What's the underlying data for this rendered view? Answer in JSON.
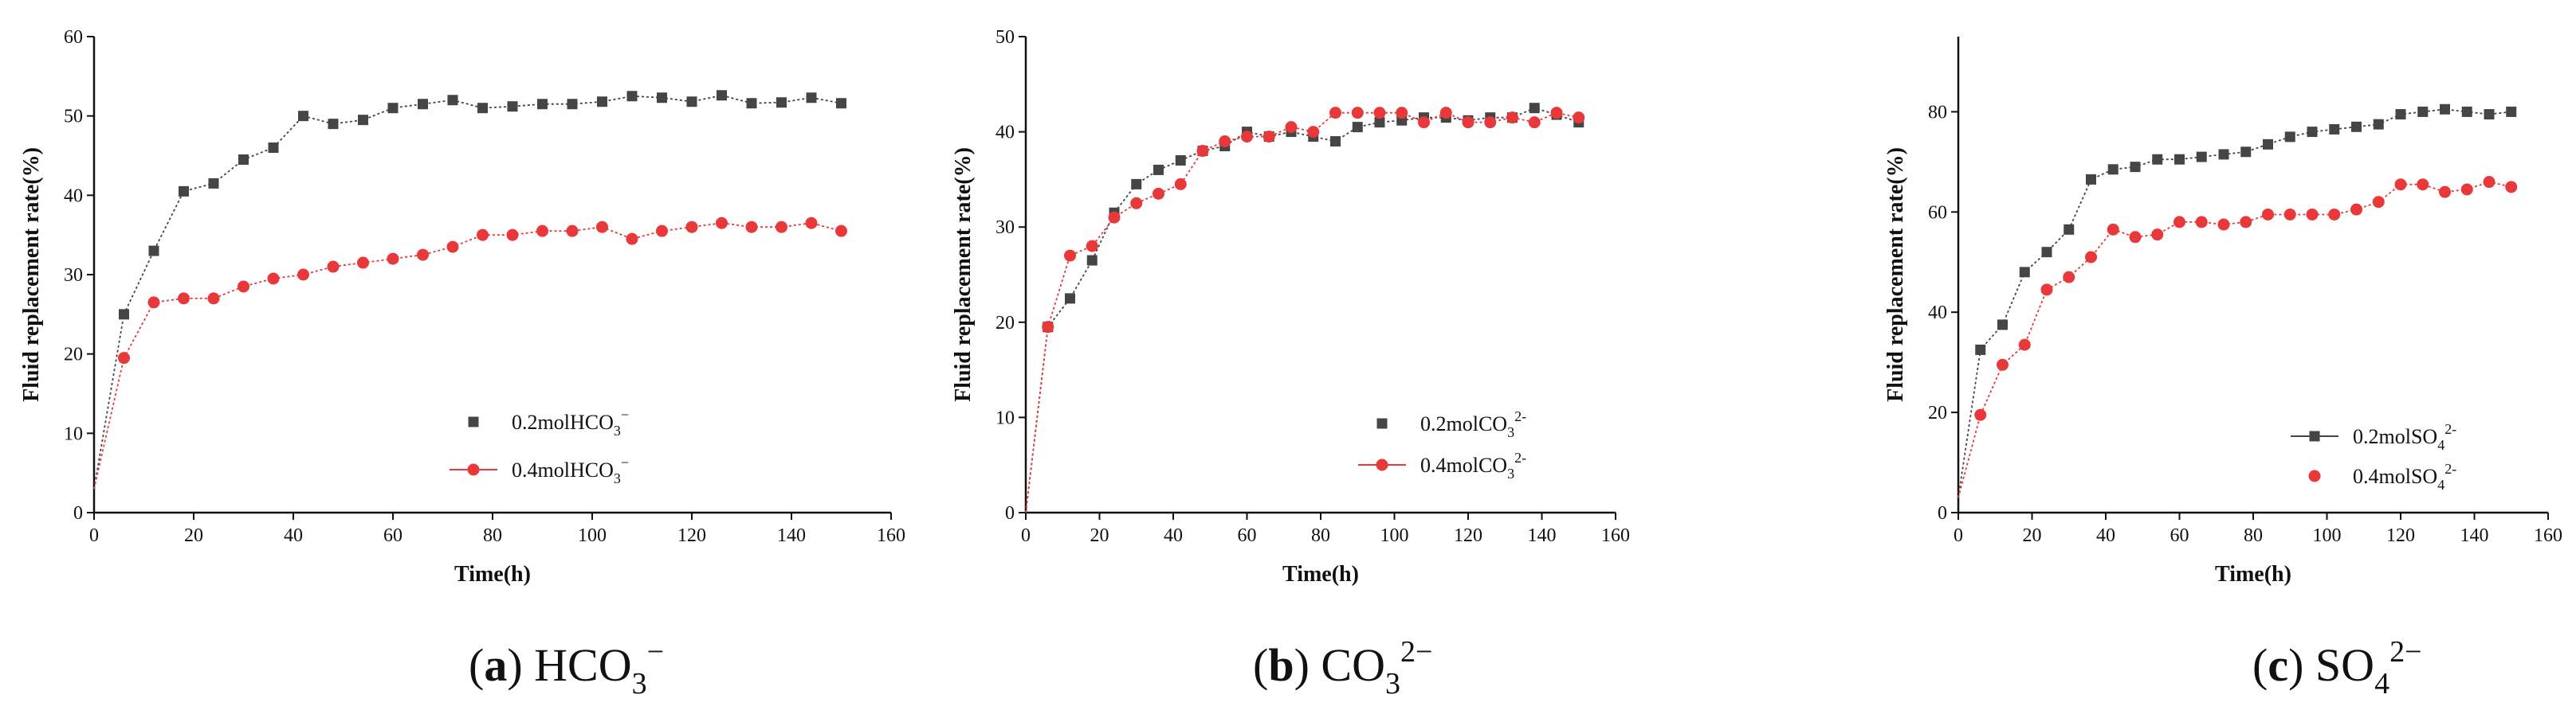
{
  "colors": {
    "series1": "#454545",
    "series2": "#e8383a",
    "axis": "#111111"
  },
  "chart_data": [
    {
      "type": "line",
      "panel_letter": "a",
      "caption_ion": "HCO",
      "caption_sub": "3",
      "caption_sup": "−",
      "xlabel": "Time(h)",
      "ylabel": "Fluid replacement rate(%)",
      "xlim": [
        0,
        160
      ],
      "ylim": [
        0,
        60
      ],
      "xticks": [
        0,
        20,
        40,
        60,
        80,
        100,
        120,
        140,
        160
      ],
      "yticks": [
        0,
        10,
        20,
        30,
        40,
        50,
        60
      ],
      "grid": false,
      "legend_position": "lower-right",
      "series": [
        {
          "name": "0.2molHCO",
          "name_sub": "3",
          "name_sup": "−",
          "marker": "square",
          "legend_line": false,
          "x": [
            0,
            6,
            12,
            18,
            24,
            30,
            36,
            42,
            48,
            54,
            60,
            66,
            72,
            78,
            84,
            90,
            96,
            102,
            108,
            114,
            120,
            126,
            132,
            138,
            144,
            150
          ],
          "y": [
            3,
            25,
            33,
            40.5,
            41.5,
            44.5,
            46,
            50,
            49,
            49.5,
            51,
            51.5,
            52,
            51,
            51.2,
            51.5,
            51.5,
            51.8,
            52.5,
            52.3,
            51.8,
            52.6,
            51.6,
            51.7,
            52.3,
            51.6
          ]
        },
        {
          "name": "0.4molHCO",
          "name_sub": "3",
          "name_sup": "−",
          "marker": "circle",
          "legend_line": true,
          "x": [
            0,
            6,
            12,
            18,
            24,
            30,
            36,
            42,
            48,
            54,
            60,
            66,
            72,
            78,
            84,
            90,
            96,
            102,
            108,
            114,
            120,
            126,
            132,
            138,
            144,
            150
          ],
          "y": [
            3,
            19.5,
            26.5,
            27,
            27,
            28.5,
            29.5,
            30,
            31,
            31.5,
            32,
            32.5,
            33.5,
            35,
            35,
            35.5,
            35.5,
            36,
            34.5,
            35.5,
            36,
            36.5,
            36,
            36,
            36.5,
            35.5
          ]
        }
      ]
    },
    {
      "type": "line",
      "panel_letter": "b",
      "caption_ion": "CO",
      "caption_sub": "3",
      "caption_sup": "2−",
      "xlabel": "Time(h)",
      "ylabel": "Fluid replacement rate(%)",
      "xlim": [
        0,
        160
      ],
      "ylim": [
        0,
        50
      ],
      "xticks": [
        0,
        20,
        40,
        60,
        80,
        100,
        120,
        140,
        160
      ],
      "yticks": [
        0,
        10,
        20,
        30,
        40,
        50
      ],
      "grid": false,
      "legend_position": "lower-right",
      "series": [
        {
          "name": "0.2molCO",
          "name_sub": "3",
          "name_sup": "2-",
          "marker": "square",
          "legend_line": false,
          "x": [
            0,
            6,
            12,
            18,
            24,
            30,
            36,
            42,
            48,
            54,
            60,
            66,
            72,
            78,
            84,
            90,
            96,
            102,
            108,
            114,
            120,
            126,
            132,
            138,
            144,
            150
          ],
          "y": [
            0,
            19.5,
            22.5,
            26.5,
            31.5,
            34.5,
            36,
            37,
            38,
            38.5,
            40,
            39.5,
            40,
            39.5,
            39,
            40.5,
            41,
            41.2,
            41.5,
            41.5,
            41.2,
            41.5,
            41.5,
            42.5,
            41.8,
            41
          ]
        },
        {
          "name": "0.4molCO",
          "name_sub": "3",
          "name_sup": "2-",
          "marker": "circle",
          "legend_line": true,
          "x": [
            0,
            6,
            12,
            18,
            24,
            30,
            36,
            42,
            48,
            54,
            60,
            66,
            72,
            78,
            84,
            90,
            96,
            102,
            108,
            114,
            120,
            126,
            132,
            138,
            144,
            150
          ],
          "y": [
            0,
            19.5,
            27,
            28,
            31,
            32.5,
            33.5,
            34.5,
            38,
            39,
            39.5,
            39.5,
            40.5,
            40,
            42,
            42,
            42,
            42,
            41,
            42,
            41,
            41,
            41.5,
            41,
            42,
            41.5
          ]
        }
      ]
    },
    {
      "type": "line",
      "panel_letter": "c",
      "caption_ion": "SO",
      "caption_sub": "4",
      "caption_sup": "2−",
      "xlabel": "Time(h)",
      "ylabel": "Fluid replacement rate(%)",
      "xlim": [
        0,
        160
      ],
      "ylim": [
        0,
        95
      ],
      "xticks": [
        0,
        20,
        40,
        60,
        80,
        100,
        120,
        140,
        160
      ],
      "yticks": [
        0,
        20,
        40,
        60,
        80
      ],
      "grid": false,
      "legend_position": "lower-right",
      "series": [
        {
          "name": "0.2molSO",
          "name_sub": "4",
          "name_sup": "2-",
          "marker": "square",
          "legend_line": true,
          "x": [
            0,
            6,
            12,
            18,
            24,
            30,
            36,
            42,
            48,
            54,
            60,
            66,
            72,
            78,
            84,
            90,
            96,
            102,
            108,
            114,
            120,
            126,
            132,
            138,
            144,
            150
          ],
          "y": [
            3,
            32.5,
            37.5,
            48,
            52,
            56.5,
            66.5,
            68.5,
            69,
            70.5,
            70.5,
            71,
            71.5,
            72,
            73.5,
            75,
            76,
            76.5,
            77,
            77.5,
            79.5,
            80,
            80.5,
            80,
            79.5,
            80
          ]
        },
        {
          "name": "0.4molSO",
          "name_sub": "4",
          "name_sup": "2-",
          "marker": "circle",
          "legend_line": false,
          "x": [
            0,
            6,
            12,
            18,
            24,
            30,
            36,
            42,
            48,
            54,
            60,
            66,
            72,
            78,
            84,
            90,
            96,
            102,
            108,
            114,
            120,
            126,
            132,
            138,
            144,
            150
          ],
          "y": [
            3,
            19.5,
            29.5,
            33.5,
            44.5,
            47,
            51,
            56.5,
            55,
            55.5,
            58,
            58,
            57.5,
            58,
            59.5,
            59.5,
            59.5,
            59.5,
            60.5,
            62,
            65.5,
            65.5,
            64,
            64.5,
            66,
            65
          ]
        }
      ]
    }
  ]
}
